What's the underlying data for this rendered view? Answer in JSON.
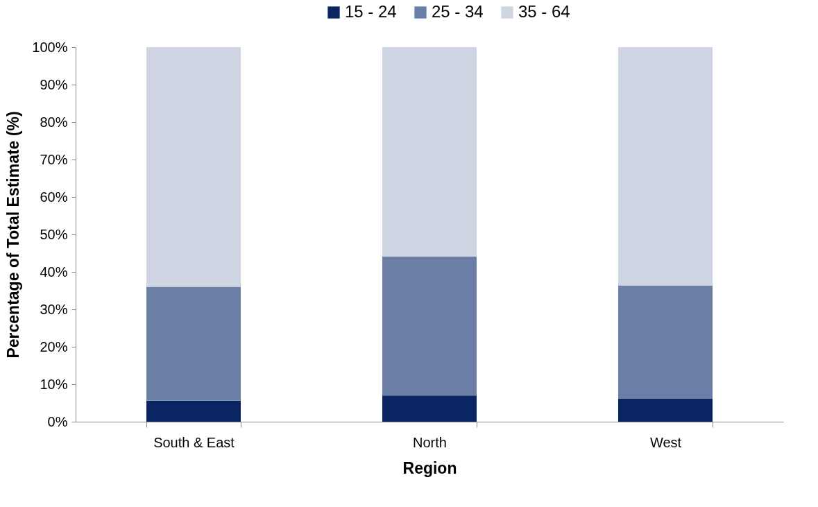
{
  "chart_data": {
    "type": "bar",
    "stacked": true,
    "xlabel": "Region",
    "ylabel": "Percentage of Total Estimate (%)",
    "categories": [
      "South & East",
      "North",
      "West"
    ],
    "series": [
      {
        "name": "15 - 24",
        "color": "#0b2563",
        "values": [
          5.6,
          7.0,
          6.1
        ]
      },
      {
        "name": "25 - 34",
        "color": "#6b7fa6",
        "values": [
          30.4,
          37.1,
          30.3
        ]
      },
      {
        "name": "35 - 64",
        "color": "#cfd5e3",
        "values": [
          64.0,
          55.9,
          63.6
        ]
      }
    ],
    "ylim": [
      0,
      100
    ],
    "yticks": [
      {
        "value": 0,
        "label": "0%"
      },
      {
        "value": 10,
        "label": "10%"
      },
      {
        "value": 20,
        "label": "20%"
      },
      {
        "value": 30,
        "label": "30%"
      },
      {
        "value": 40,
        "label": "40%"
      },
      {
        "value": 50,
        "label": "50%"
      },
      {
        "value": 60,
        "label": "60%"
      },
      {
        "value": 70,
        "label": "70%"
      },
      {
        "value": 80,
        "label": "80%"
      },
      {
        "value": 90,
        "label": "90%"
      },
      {
        "value": 100,
        "label": "100%"
      }
    ],
    "legend": "top",
    "grid": false
  }
}
